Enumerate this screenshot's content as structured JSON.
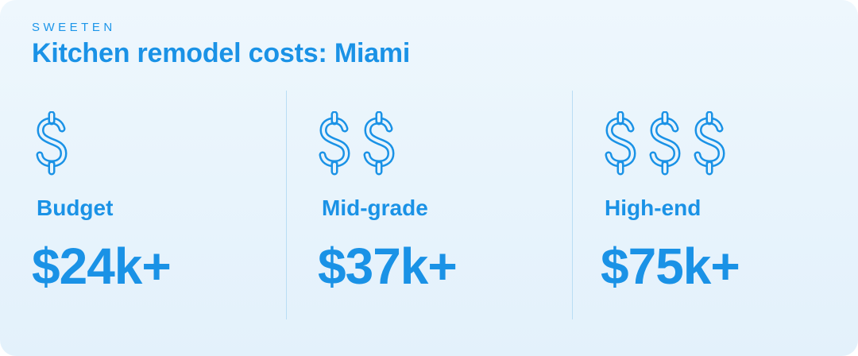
{
  "brand": "SWEETEN",
  "title": "Kitchen remodel costs: Miami",
  "colors": {
    "accent": "#1a92e6",
    "background_top": "#eef7fd",
    "background_bottom": "#e3f1fb",
    "divider": "#b9ddf4"
  },
  "tiers": [
    {
      "icon": "dollar-sign-icon",
      "dollar_count": 1,
      "label": "Budget",
      "price": "$24k+"
    },
    {
      "icon": "dollar-sign-icon",
      "dollar_count": 2,
      "label": "Mid-grade",
      "price": "$37k+"
    },
    {
      "icon": "dollar-sign-icon",
      "dollar_count": 3,
      "label": "High-end",
      "price": "$75k+"
    }
  ]
}
